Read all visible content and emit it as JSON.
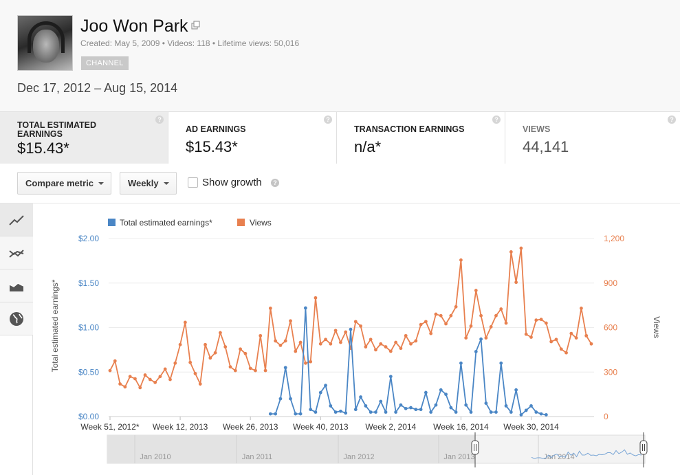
{
  "channel": {
    "name": "Joo Won Park",
    "meta": "Created: May 5, 2009 • Videos: 118 • Lifetime views: 50,016",
    "badge": "CHANNEL"
  },
  "date_range": "Dec 17, 2012 – Aug 15, 2014",
  "metrics": [
    {
      "label": "TOTAL ESTIMATED EARNINGS",
      "value": "$15.43*"
    },
    {
      "label": "AD EARNINGS",
      "value": "$15.43*"
    },
    {
      "label": "TRANSACTION EARNINGS",
      "value": "n/a*"
    },
    {
      "label": "VIEWS",
      "value": "44,141"
    }
  ],
  "controls": {
    "compare_metric": "Compare metric",
    "interval": "Weekly",
    "show_growth": "Show growth",
    "help": "?"
  },
  "side_icons": [
    "line-chart-icon",
    "multi-line-chart-icon",
    "area-chart-icon",
    "globe-map-icon"
  ],
  "colors": {
    "earnings": "#4a86c5",
    "views": "#e8804f"
  },
  "chart_data": {
    "type": "line",
    "legend": [
      "Total estimated earnings*",
      "Views"
    ],
    "y_left_label": "Total estimated earnings*",
    "y_right_label": "Views",
    "y_left_ticks": [
      "$0.00",
      "$0.50",
      "$1.00",
      "$1.50",
      "$2.00"
    ],
    "y_right_ticks": [
      "0",
      "300",
      "600",
      "900",
      "1,200"
    ],
    "y_left_range": [
      0,
      2
    ],
    "y_right_range": [
      0,
      1200
    ],
    "x_tick_labels": [
      "Week 51, 2012*",
      "Week 12, 2013",
      "Week 26, 2013",
      "Week 40, 2013",
      "Week 2, 2014",
      "Week 16, 2014",
      "Week 30, 2014"
    ],
    "x_tick_week_index": [
      0,
      14,
      28,
      42,
      56,
      70,
      84
    ],
    "series": [
      {
        "name": "Views",
        "axis": "right",
        "values": [
          310,
          375,
          220,
          200,
          270,
          255,
          195,
          280,
          250,
          230,
          270,
          320,
          250,
          360,
          485,
          635,
          365,
          290,
          220,
          485,
          395,
          430,
          565,
          470,
          335,
          310,
          455,
          425,
          325,
          310,
          545,
          310,
          730,
          510,
          480,
          510,
          645,
          440,
          500,
          360,
          370,
          800,
          490,
          520,
          490,
          580,
          500,
          570,
          460,
          640,
          610,
          470,
          520,
          450,
          490,
          470,
          440,
          500,
          460,
          545,
          490,
          510,
          620,
          640,
          560,
          690,
          680,
          625,
          680,
          740,
          1055,
          530,
          610,
          850,
          680,
          530,
          605,
          680,
          725,
          630,
          1110,
          905,
          1135,
          555,
          535,
          650,
          655,
          630,
          505,
          520,
          455,
          430,
          560,
          530,
          730,
          545,
          490
        ]
      },
      {
        "name": "Total estimated earnings*",
        "axis": "left",
        "start_week": 32,
        "values": [
          0.03,
          0.03,
          0.2,
          0.55,
          0.2,
          0.03,
          0.03,
          1.22,
          0.08,
          0.05,
          0.27,
          0.35,
          0.12,
          0.05,
          0.06,
          0.04,
          0.98,
          0.08,
          0.22,
          0.12,
          0.05,
          0.05,
          0.17,
          0.05,
          0.45,
          0.05,
          0.13,
          0.09,
          0.1,
          0.08,
          0.08,
          0.27,
          0.05,
          0.13,
          0.3,
          0.25,
          0.1,
          0.05,
          0.6,
          0.13,
          0.05,
          0.73,
          0.87,
          0.15,
          0.05,
          0.05,
          0.6,
          0.12,
          0.05,
          0.3,
          0.02,
          0.07,
          0.12,
          0.05,
          0.03,
          0.02
        ]
      }
    ]
  },
  "navigator": {
    "labels": [
      "Jan 2010",
      "Jan 2011",
      "Jan 2012",
      "Jan 2013",
      "Jan 2014"
    ]
  }
}
